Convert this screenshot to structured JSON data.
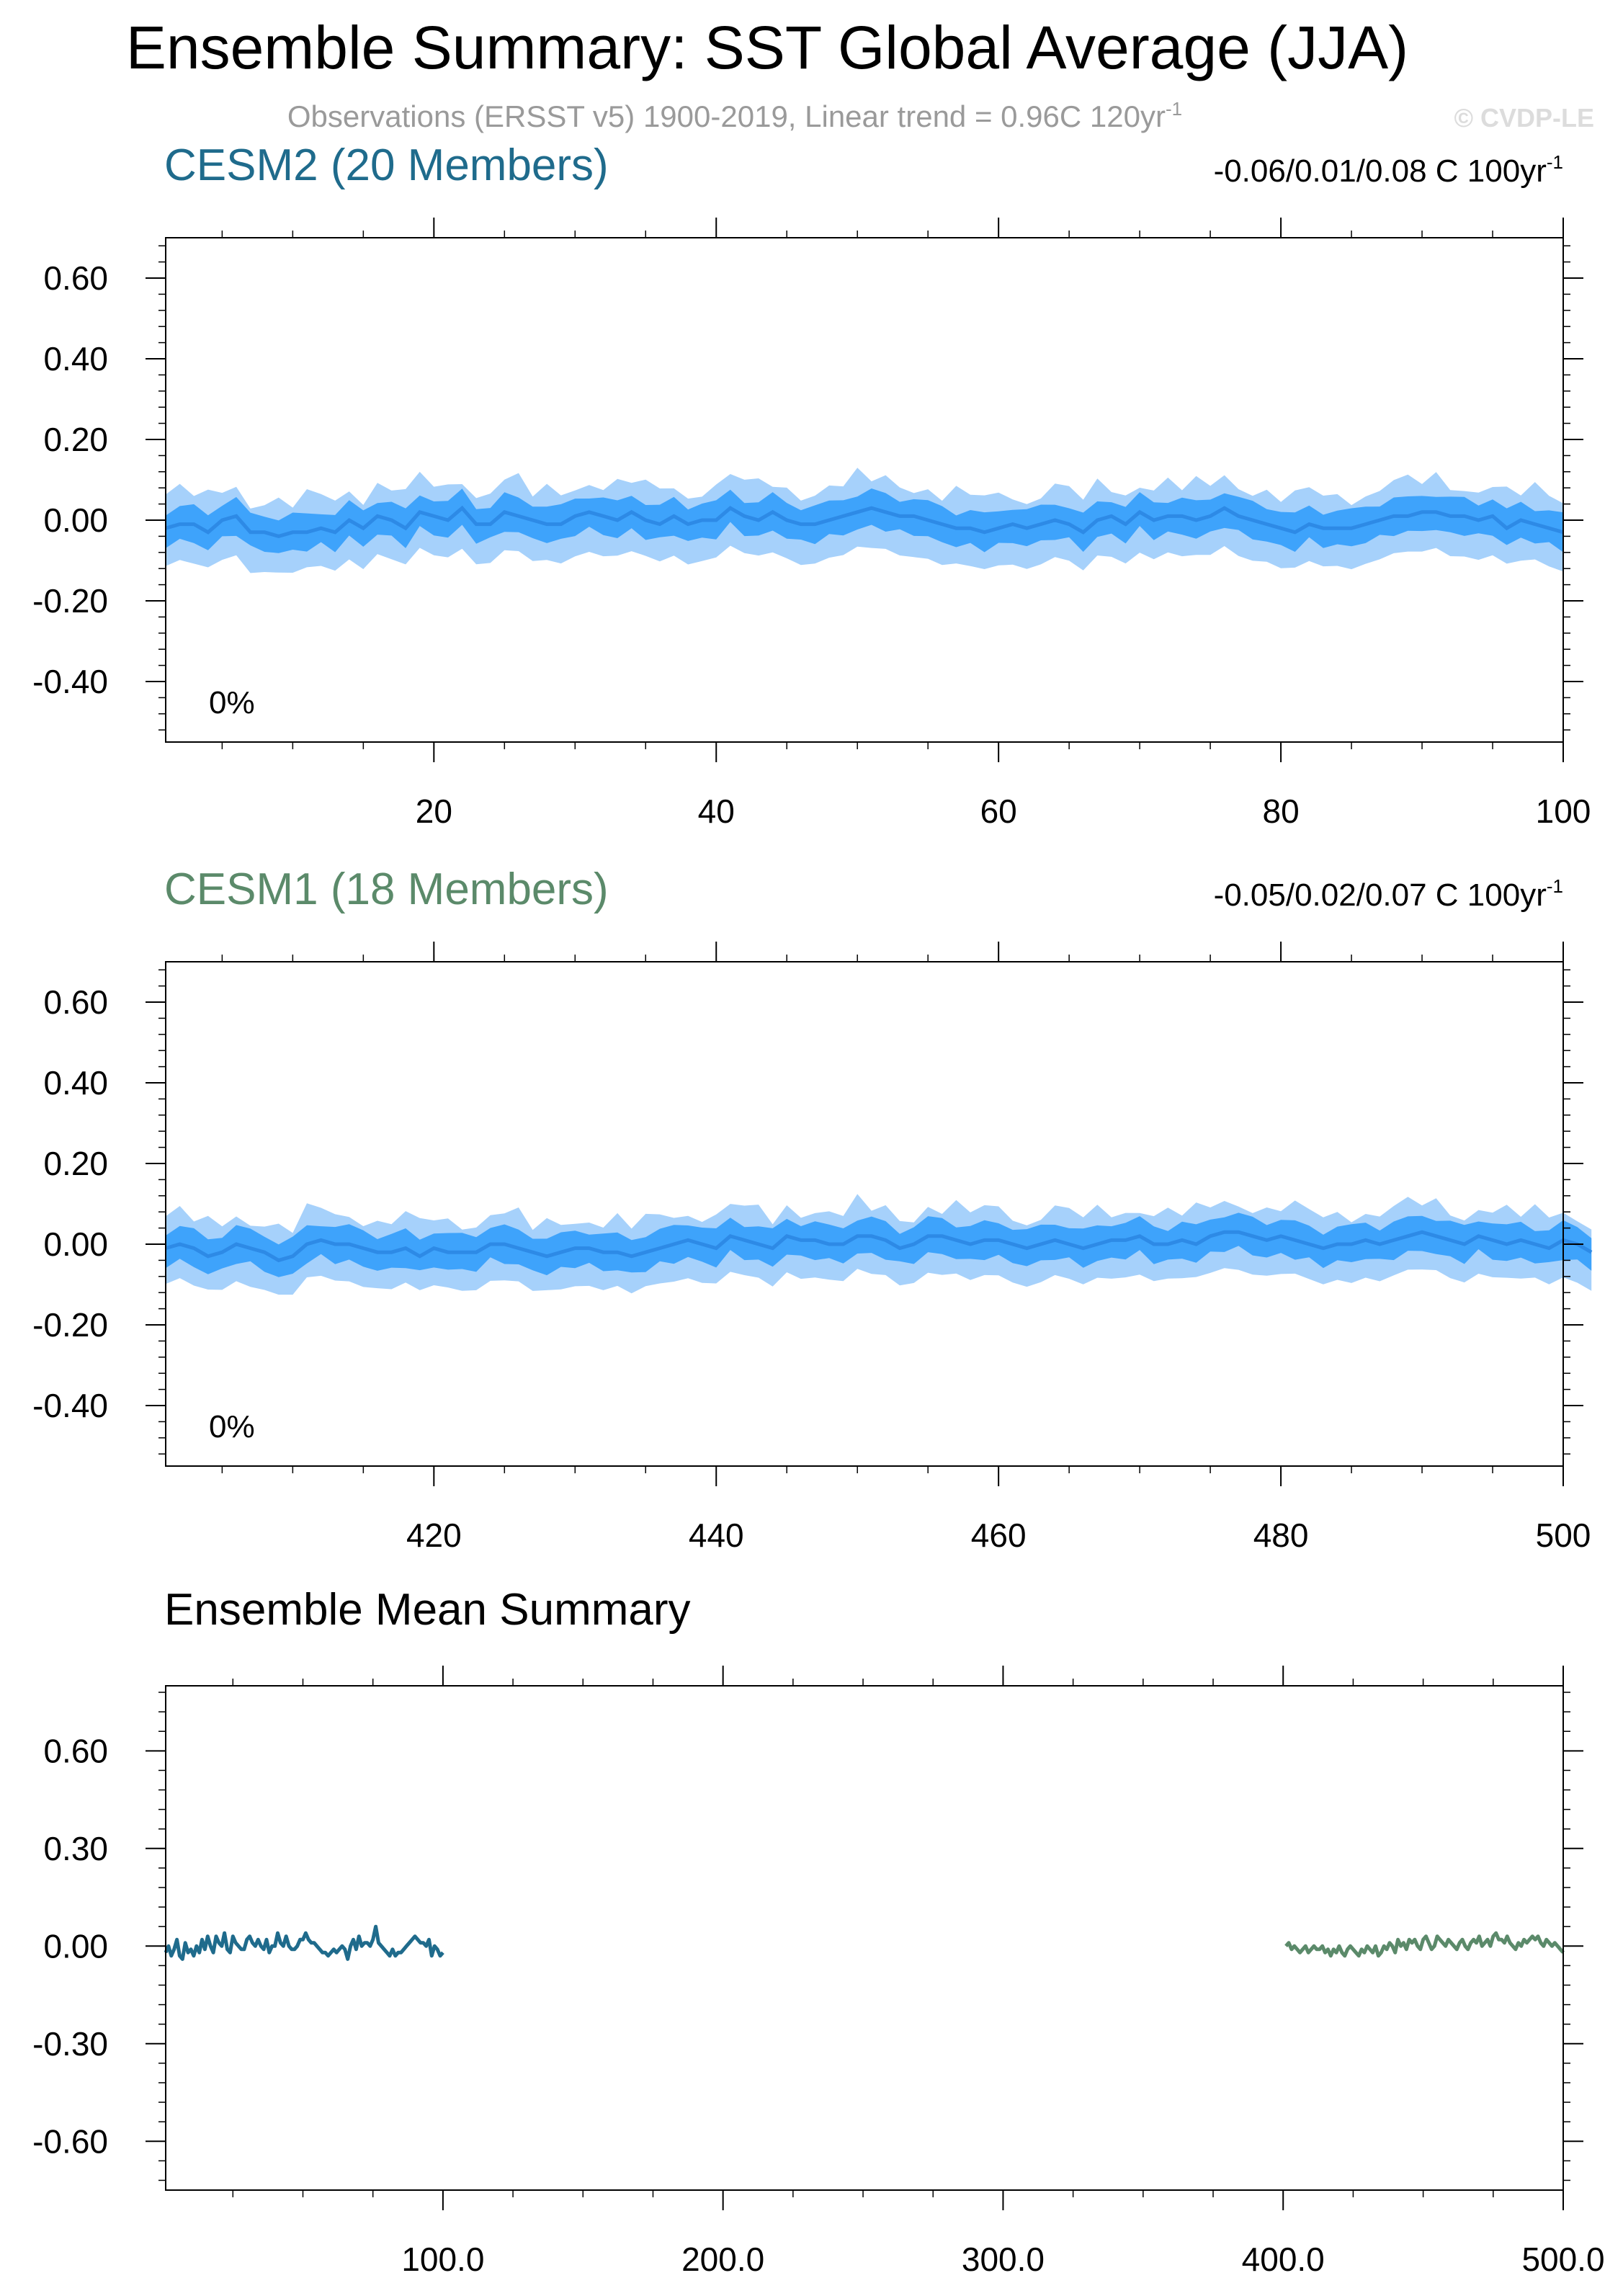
{
  "title": "Ensemble Summary: SST Global Average (JJA)",
  "subtitle": "Observations (ERSST v5) 1900-2019, Linear trend = 0.96C 120yr",
  "subtitle_sup": "-1",
  "watermark": "© CVDP-LE",
  "colors": {
    "cesm2": "#1f6b8c",
    "cesm1": "#5b8a6a",
    "band_outer": "#a6d1fb",
    "band_inner": "#3ea3fb",
    "mean_line": "#2d8ae6"
  },
  "chart_data": [
    {
      "type": "area",
      "title": "CESM2 (20 Members)",
      "trend_label": "-0.06/0.01/0.08 C 100yr",
      "trend_label_sup": "-1",
      "percent_label": "0%",
      "xlim": [
        1,
        100
      ],
      "ylim": [
        -0.55,
        0.7
      ],
      "xticks": [
        20,
        40,
        60,
        80,
        100
      ],
      "xtick_labels": [
        "20",
        "40",
        "60",
        "80",
        "100"
      ],
      "yticks": [
        0.6,
        0.4,
        0.2,
        0.0,
        -0.2,
        -0.4
      ],
      "ytick_labels": [
        "0.60",
        "0.40",
        "0.20",
        "0.00",
        "-0.20",
        "-0.40"
      ],
      "x_start": 1,
      "mean": [
        -0.02,
        -0.01,
        -0.01,
        -0.03,
        0.0,
        0.01,
        -0.03,
        -0.03,
        -0.04,
        -0.03,
        -0.03,
        -0.02,
        -0.03,
        0.0,
        -0.02,
        0.01,
        0.0,
        -0.02,
        0.02,
        0.01,
        0.0,
        0.03,
        -0.01,
        -0.01,
        0.02,
        0.01,
        0.0,
        -0.01,
        -0.01,
        0.01,
        0.02,
        0.01,
        0.0,
        0.02,
        0.0,
        -0.01,
        0.01,
        -0.01,
        0.0,
        0.0,
        0.03,
        0.01,
        0.0,
        0.02,
        0.0,
        -0.01,
        -0.01,
        0.0,
        0.01,
        0.02,
        0.03,
        0.02,
        0.01,
        0.01,
        0.0,
        -0.01,
        -0.02,
        -0.02,
        -0.03,
        -0.02,
        -0.01,
        -0.02,
        -0.01,
        0.0,
        -0.01,
        -0.03,
        0.0,
        0.01,
        -0.01,
        0.02,
        0.0,
        0.01,
        0.01,
        0.0,
        0.01,
        0.03,
        0.01,
        0.0,
        -0.01,
        -0.02,
        -0.03,
        -0.01,
        -0.02,
        -0.02,
        -0.02,
        -0.01,
        0.0,
        0.01,
        0.01,
        0.02,
        0.02,
        0.01,
        0.01,
        0.0,
        0.01,
        -0.02,
        0.0,
        -0.01,
        -0.02,
        -0.03
      ],
      "inner_halfwidth": 0.045,
      "outer_halfwidth": 0.095
    },
    {
      "type": "area",
      "title": "CESM1 (18 Members)",
      "trend_label": "-0.05/0.02/0.07 C 100yr",
      "trend_label_sup": "-1",
      "percent_label": "0%",
      "xlim": [
        401,
        500
      ],
      "ylim": [
        -0.55,
        0.7
      ],
      "xticks": [
        420,
        440,
        460,
        480,
        500
      ],
      "xtick_labels": [
        "420",
        "440",
        "460",
        "480",
        "500"
      ],
      "yticks": [
        0.6,
        0.4,
        0.2,
        0.0,
        -0.2,
        -0.4
      ],
      "ytick_labels": [
        "0.60",
        "0.40",
        "0.20",
        "0.00",
        "-0.20",
        "-0.40"
      ],
      "x_start": 401,
      "mean": [
        -0.01,
        0.0,
        -0.01,
        -0.03,
        -0.02,
        0.0,
        -0.01,
        -0.02,
        -0.04,
        -0.03,
        0.0,
        0.01,
        0.0,
        0.0,
        -0.01,
        -0.02,
        -0.02,
        -0.01,
        -0.03,
        -0.01,
        -0.02,
        -0.02,
        -0.02,
        0.0,
        0.0,
        -0.01,
        -0.02,
        -0.03,
        -0.02,
        -0.01,
        -0.01,
        -0.02,
        -0.02,
        -0.03,
        -0.02,
        -0.01,
        0.0,
        0.01,
        0.0,
        -0.01,
        0.02,
        0.01,
        0.0,
        -0.01,
        0.02,
        0.01,
        0.01,
        0.0,
        0.0,
        0.02,
        0.02,
        0.01,
        -0.01,
        0.0,
        0.02,
        0.02,
        0.01,
        0.0,
        0.01,
        0.01,
        0.0,
        -0.01,
        0.0,
        0.01,
        0.0,
        -0.01,
        0.0,
        0.01,
        0.01,
        0.02,
        0.0,
        0.0,
        0.01,
        0.0,
        0.02,
        0.03,
        0.03,
        0.02,
        0.01,
        0.02,
        0.01,
        0.0,
        -0.01,
        0.0,
        0.0,
        0.01,
        0.0,
        0.01,
        0.02,
        0.03,
        0.02,
        0.01,
        0.0,
        0.02,
        0.01,
        0.0,
        0.01,
        0.0,
        -0.01,
        0.01,
        0.0,
        -0.02
      ],
      "inner_halfwidth": 0.045,
      "outer_halfwidth": 0.09
    },
    {
      "type": "line",
      "title": "Ensemble Mean Summary",
      "xlim": [
        1,
        500
      ],
      "ylim": [
        -0.75,
        0.8
      ],
      "xticks": [
        100,
        200,
        300,
        400,
        500
      ],
      "xtick_labels": [
        "100.0",
        "200.0",
        "300.0",
        "400.0",
        "500.0"
      ],
      "yticks": [
        0.6,
        0.3,
        0.0,
        -0.3,
        -0.6
      ],
      "ytick_labels": [
        "0.60",
        "0.30",
        "0.00",
        "-0.30",
        "-0.60"
      ],
      "series": [
        {
          "x_start": 1,
          "color_key": "cesm2",
          "values": [
            -0.02,
            0.0,
            -0.03,
            -0.01,
            0.02,
            -0.03,
            -0.04,
            0.01,
            -0.02,
            -0.01,
            -0.03,
            0.0,
            -0.02,
            0.02,
            -0.01,
            0.03,
            0.0,
            -0.02,
            0.03,
            0.01,
            0.0,
            0.04,
            -0.01,
            -0.02,
            0.03,
            0.01,
            0.0,
            -0.01,
            -0.01,
            0.02,
            0.03,
            0.01,
            0.0,
            0.02,
            0.0,
            -0.01,
            0.02,
            -0.02,
            0.0,
            0.0,
            0.04,
            0.01,
            0.0,
            0.03,
            0.0,
            -0.01,
            -0.01,
            0.0,
            0.02,
            0.02,
            0.04,
            0.02,
            0.01,
            0.01,
            0.0,
            -0.01,
            -0.02,
            -0.02,
            -0.03,
            -0.02,
            -0.01,
            -0.02,
            -0.01,
            0.0,
            -0.01,
            -0.04,
            0.0,
            0.02,
            -0.01,
            0.03,
            0.0,
            0.01,
            0.01,
            0.0,
            0.02,
            0.06,
            0.01,
            0.0,
            -0.01,
            -0.02,
            -0.03,
            -0.01,
            -0.03,
            -0.02,
            -0.02,
            -0.01,
            0.0,
            0.01,
            0.02,
            0.03,
            0.02,
            0.01,
            0.01,
            0.0,
            0.02,
            -0.03,
            0.0,
            -0.01,
            -0.03,
            -0.02
          ]
        },
        {
          "x_start": 401,
          "color_key": "cesm1",
          "values": [
            0.0,
            0.01,
            -0.01,
            0.0,
            -0.01,
            -0.02,
            -0.01,
            0.0,
            -0.02,
            -0.01,
            0.0,
            -0.01,
            -0.01,
            0.0,
            -0.02,
            -0.01,
            -0.03,
            -0.01,
            -0.02,
            0.0,
            -0.02,
            -0.03,
            -0.01,
            0.0,
            -0.01,
            -0.02,
            -0.03,
            -0.01,
            -0.02,
            0.0,
            -0.01,
            -0.02,
            0.0,
            -0.03,
            -0.02,
            0.0,
            -0.01,
            0.01,
            0.0,
            -0.02,
            0.02,
            0.0,
            0.01,
            -0.01,
            0.02,
            0.01,
            0.02,
            0.0,
            -0.01,
            0.02,
            0.03,
            0.01,
            -0.01,
            0.0,
            0.03,
            0.02,
            0.01,
            0.0,
            0.02,
            0.01,
            0.0,
            -0.01,
            0.01,
            0.02,
            0.0,
            -0.01,
            0.01,
            0.02,
            0.01,
            0.03,
            0.0,
            0.01,
            0.02,
            0.0,
            0.03,
            0.04,
            0.02,
            0.02,
            0.01,
            0.03,
            0.01,
            0.0,
            -0.01,
            0.01,
            0.0,
            0.02,
            0.01,
            0.02,
            0.03,
            0.02,
            0.03,
            0.01,
            0.0,
            0.02,
            0.01,
            0.0,
            0.01,
            0.0,
            -0.01,
            -0.02
          ]
        }
      ]
    }
  ]
}
